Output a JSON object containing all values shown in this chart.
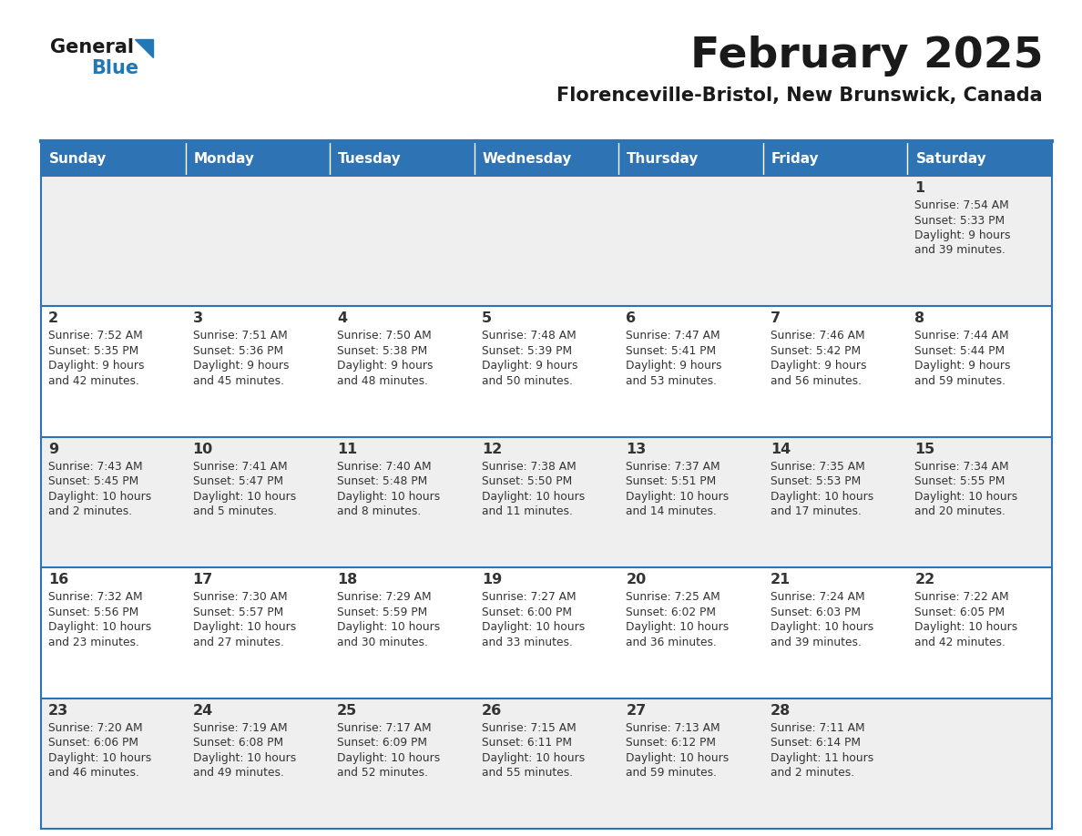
{
  "title": "February 2025",
  "subtitle": "Florenceville-Bristol, New Brunswick, Canada",
  "days_of_week": [
    "Sunday",
    "Monday",
    "Tuesday",
    "Wednesday",
    "Thursday",
    "Friday",
    "Saturday"
  ],
  "header_bg": "#2E74B5",
  "header_text_color": "#FFFFFF",
  "cell_bg_white": "#FFFFFF",
  "cell_bg_shaded": "#EFEFEF",
  "day_num_color": "#333333",
  "text_color": "#333333",
  "border_color": "#2E74B5",
  "logo_general_color": "#1A1A1A",
  "logo_blue_color": "#2278B5",
  "calendar_data": [
    [
      {
        "day": null,
        "sunrise": null,
        "sunset": null,
        "daylight": null
      },
      {
        "day": null,
        "sunrise": null,
        "sunset": null,
        "daylight": null
      },
      {
        "day": null,
        "sunrise": null,
        "sunset": null,
        "daylight": null
      },
      {
        "day": null,
        "sunrise": null,
        "sunset": null,
        "daylight": null
      },
      {
        "day": null,
        "sunrise": null,
        "sunset": null,
        "daylight": null
      },
      {
        "day": null,
        "sunrise": null,
        "sunset": null,
        "daylight": null
      },
      {
        "day": 1,
        "sunrise": "7:54 AM",
        "sunset": "5:33 PM",
        "daylight": "9 hours\nand 39 minutes."
      }
    ],
    [
      {
        "day": 2,
        "sunrise": "7:52 AM",
        "sunset": "5:35 PM",
        "daylight": "9 hours\nand 42 minutes."
      },
      {
        "day": 3,
        "sunrise": "7:51 AM",
        "sunset": "5:36 PM",
        "daylight": "9 hours\nand 45 minutes."
      },
      {
        "day": 4,
        "sunrise": "7:50 AM",
        "sunset": "5:38 PM",
        "daylight": "9 hours\nand 48 minutes."
      },
      {
        "day": 5,
        "sunrise": "7:48 AM",
        "sunset": "5:39 PM",
        "daylight": "9 hours\nand 50 minutes."
      },
      {
        "day": 6,
        "sunrise": "7:47 AM",
        "sunset": "5:41 PM",
        "daylight": "9 hours\nand 53 minutes."
      },
      {
        "day": 7,
        "sunrise": "7:46 AM",
        "sunset": "5:42 PM",
        "daylight": "9 hours\nand 56 minutes."
      },
      {
        "day": 8,
        "sunrise": "7:44 AM",
        "sunset": "5:44 PM",
        "daylight": "9 hours\nand 59 minutes."
      }
    ],
    [
      {
        "day": 9,
        "sunrise": "7:43 AM",
        "sunset": "5:45 PM",
        "daylight": "10 hours\nand 2 minutes."
      },
      {
        "day": 10,
        "sunrise": "7:41 AM",
        "sunset": "5:47 PM",
        "daylight": "10 hours\nand 5 minutes."
      },
      {
        "day": 11,
        "sunrise": "7:40 AM",
        "sunset": "5:48 PM",
        "daylight": "10 hours\nand 8 minutes."
      },
      {
        "day": 12,
        "sunrise": "7:38 AM",
        "sunset": "5:50 PM",
        "daylight": "10 hours\nand 11 minutes."
      },
      {
        "day": 13,
        "sunrise": "7:37 AM",
        "sunset": "5:51 PM",
        "daylight": "10 hours\nand 14 minutes."
      },
      {
        "day": 14,
        "sunrise": "7:35 AM",
        "sunset": "5:53 PM",
        "daylight": "10 hours\nand 17 minutes."
      },
      {
        "day": 15,
        "sunrise": "7:34 AM",
        "sunset": "5:55 PM",
        "daylight": "10 hours\nand 20 minutes."
      }
    ],
    [
      {
        "day": 16,
        "sunrise": "7:32 AM",
        "sunset": "5:56 PM",
        "daylight": "10 hours\nand 23 minutes."
      },
      {
        "day": 17,
        "sunrise": "7:30 AM",
        "sunset": "5:57 PM",
        "daylight": "10 hours\nand 27 minutes."
      },
      {
        "day": 18,
        "sunrise": "7:29 AM",
        "sunset": "5:59 PM",
        "daylight": "10 hours\nand 30 minutes."
      },
      {
        "day": 19,
        "sunrise": "7:27 AM",
        "sunset": "6:00 PM",
        "daylight": "10 hours\nand 33 minutes."
      },
      {
        "day": 20,
        "sunrise": "7:25 AM",
        "sunset": "6:02 PM",
        "daylight": "10 hours\nand 36 minutes."
      },
      {
        "day": 21,
        "sunrise": "7:24 AM",
        "sunset": "6:03 PM",
        "daylight": "10 hours\nand 39 minutes."
      },
      {
        "day": 22,
        "sunrise": "7:22 AM",
        "sunset": "6:05 PM",
        "daylight": "10 hours\nand 42 minutes."
      }
    ],
    [
      {
        "day": 23,
        "sunrise": "7:20 AM",
        "sunset": "6:06 PM",
        "daylight": "10 hours\nand 46 minutes."
      },
      {
        "day": 24,
        "sunrise": "7:19 AM",
        "sunset": "6:08 PM",
        "daylight": "10 hours\nand 49 minutes."
      },
      {
        "day": 25,
        "sunrise": "7:17 AM",
        "sunset": "6:09 PM",
        "daylight": "10 hours\nand 52 minutes."
      },
      {
        "day": 26,
        "sunrise": "7:15 AM",
        "sunset": "6:11 PM",
        "daylight": "10 hours\nand 55 minutes."
      },
      {
        "day": 27,
        "sunrise": "7:13 AM",
        "sunset": "6:12 PM",
        "daylight": "10 hours\nand 59 minutes."
      },
      {
        "day": 28,
        "sunrise": "7:11 AM",
        "sunset": "6:14 PM",
        "daylight": "11 hours\nand 2 minutes."
      },
      {
        "day": null,
        "sunrise": null,
        "sunset": null,
        "daylight": null
      }
    ]
  ],
  "row_backgrounds": [
    "#EFEFEF",
    "#FFFFFF",
    "#EFEFEF",
    "#FFFFFF",
    "#EFEFEF"
  ]
}
